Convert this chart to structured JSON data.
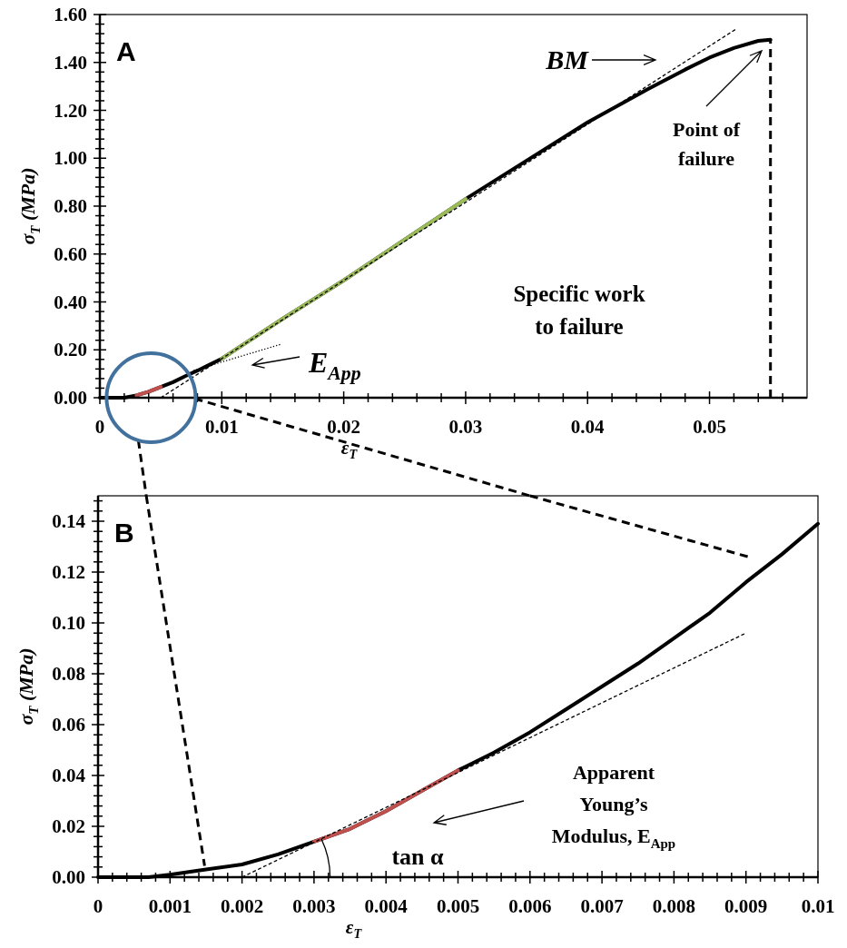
{
  "chart_data": [
    {
      "type": "line",
      "title": "A",
      "xlabel": "ε$_{T}$",
      "ylabel": "σ$_{T}$ (MPa)",
      "xlim": [
        0,
        0.058
      ],
      "ylim": [
        0,
        1.6
      ],
      "xticks": [
        0,
        {
          "value": 0.002,
          "label": null
        },
        {
          "value": 0.004,
          "label": null
        },
        {
          "value": 0.006,
          "label": null
        },
        {
          "value": 0.008,
          "label": null
        },
        0.01,
        {
          "value": 0.012,
          "label": null
        },
        {
          "value": 0.014,
          "label": null
        },
        {
          "value": 0.016,
          "label": null
        },
        {
          "value": 0.018,
          "label": null
        },
        0.02,
        {
          "value": 0.022,
          "label": null
        },
        {
          "value": 0.024,
          "label": null
        },
        {
          "value": 0.026,
          "label": null
        },
        {
          "value": 0.028,
          "label": null
        },
        0.03,
        {
          "value": 0.032,
          "label": null
        },
        {
          "value": 0.034,
          "label": null
        },
        {
          "value": 0.036,
          "label": null
        },
        {
          "value": 0.038,
          "label": null
        },
        0.04,
        {
          "value": 0.042,
          "label": null
        },
        {
          "value": 0.044,
          "label": null
        },
        {
          "value": 0.046,
          "label": null
        },
        {
          "value": 0.048,
          "label": null
        },
        0.05,
        {
          "value": 0.052,
          "label": null
        },
        {
          "value": 0.054,
          "label": null
        },
        {
          "value": 0.056,
          "label": null
        }
      ],
      "yticks": [
        {
          "value": 0,
          "label": "0.00"
        },
        {
          "value": 0.04,
          "label": null
        },
        {
          "value": 0.08,
          "label": null
        },
        {
          "value": 0.12,
          "label": null
        },
        {
          "value": 0.16,
          "label": null
        },
        {
          "value": 0.2,
          "label": "0.20"
        },
        {
          "value": 0.24,
          "label": null
        },
        {
          "value": 0.28,
          "label": null
        },
        {
          "value": 0.32,
          "label": null
        },
        {
          "value": 0.36,
          "label": null
        },
        {
          "value": 0.4,
          "label": "0.40"
        },
        {
          "value": 0.44,
          "label": null
        },
        {
          "value": 0.48,
          "label": null
        },
        {
          "value": 0.52,
          "label": null
        },
        {
          "value": 0.56,
          "label": null
        },
        {
          "value": 0.6,
          "label": "0.60"
        },
        {
          "value": 0.64,
          "label": null
        },
        {
          "value": 0.68,
          "label": null
        },
        {
          "value": 0.72,
          "label": null
        },
        {
          "value": 0.76,
          "label": null
        },
        {
          "value": 0.8,
          "label": "0.80"
        },
        {
          "value": 0.84,
          "label": null
        },
        {
          "value": 0.88,
          "label": null
        },
        {
          "value": 0.92,
          "label": null
        },
        {
          "value": 0.96,
          "label": null
        },
        {
          "value": 1,
          "label": "1.00"
        },
        {
          "value": 1.04,
          "label": null
        },
        {
          "value": 1.08,
          "label": null
        },
        {
          "value": 1.12,
          "label": null
        },
        {
          "value": 1.16,
          "label": null
        },
        {
          "value": 1.2,
          "label": "1.20"
        },
        {
          "value": 1.24,
          "label": null
        },
        {
          "value": 1.28,
          "label": null
        },
        {
          "value": 1.32,
          "label": null
        },
        {
          "value": 1.36,
          "label": null
        },
        {
          "value": 1.4,
          "label": "1.40"
        },
        {
          "value": 1.44,
          "label": null
        },
        {
          "value": 1.48,
          "label": null
        },
        {
          "value": 1.52,
          "label": null
        },
        {
          "value": 1.56,
          "label": null
        },
        {
          "value": 1.6,
          "label": "1.60"
        }
      ],
      "series": [
        {
          "color": "#000000",
          "line_style": "solid",
          "x": [
            0,
            0.002,
            0.003,
            0.004,
            0.005,
            0.006,
            0.007,
            0.008,
            0.009,
            0.01,
            0.015,
            0.02,
            0.025,
            0.03,
            0.035,
            0.04,
            0.045,
            0.048,
            0.05,
            0.052,
            0.054,
            0.055
          ],
          "values": [
            0,
            0,
            0.01,
            0.025,
            0.045,
            0.065,
            0.09,
            0.113,
            0.138,
            0.163,
            0.33,
            0.49,
            0.66,
            0.83,
            0.99,
            1.15,
            1.29,
            1.37,
            1.42,
            1.46,
            1.49,
            1.495
          ]
        },
        {
          "color": "#9bbb59",
          "line_style": "solid",
          "x": [
            0.01,
            0.015,
            0.02,
            0.025,
            0.03
          ],
          "values": [
            0.163,
            0.33,
            0.49,
            0.66,
            0.83
          ]
        },
        {
          "color": "#c0504d",
          "line_style": "solid",
          "x": [
            0.003,
            0.004,
            0.005
          ],
          "values": [
            0.01,
            0.025,
            0.045
          ]
        },
        {
          "color": "#000000",
          "line_style": "dashed",
          "x": [
            0.005,
            0.0522
          ],
          "values": [
            0,
            1.54
          ]
        },
        {
          "color": "#000000",
          "line_style": "dotted",
          "x": [
            0.0077,
            0.0149
          ],
          "values": [
            0.114,
            0.224
          ]
        },
        {
          "color": "#000000",
          "line_style": "dashed",
          "x": [
            0.055,
            0.055
          ],
          "values": [
            0,
            1.495
          ]
        }
      ],
      "annotations": [
        "BM",
        "Point of\nfailure",
        "Specific work\nto failure",
        "E$_{App}$"
      ]
    },
    {
      "type": "line",
      "title": "B",
      "xlabel": "ε$_{T}$",
      "ylabel": "σ$_{T}$ (MPa)",
      "xlim": [
        0,
        0.01
      ],
      "ylim": [
        0,
        0.15
      ],
      "xticks": [
        0,
        {
          "value": 0.0002,
          "label": null
        },
        {
          "value": 0.0004,
          "label": null
        },
        {
          "value": 0.0006,
          "label": null
        },
        {
          "value": 0.0008,
          "label": null
        },
        0.001,
        {
          "value": 0.0012,
          "label": null
        },
        {
          "value": 0.0014,
          "label": null
        },
        {
          "value": 0.0016,
          "label": null
        },
        {
          "value": 0.0018,
          "label": null
        },
        0.002,
        {
          "value": 0.0022,
          "label": null
        },
        {
          "value": 0.0024,
          "label": null
        },
        {
          "value": 0.0026,
          "label": null
        },
        {
          "value": 0.0028,
          "label": null
        },
        0.003,
        {
          "value": 0.0032,
          "label": null
        },
        {
          "value": 0.0034,
          "label": null
        },
        {
          "value": 0.0036,
          "label": null
        },
        {
          "value": 0.0038,
          "label": null
        },
        0.004,
        {
          "value": 0.0042,
          "label": null
        },
        {
          "value": 0.0044,
          "label": null
        },
        {
          "value": 0.0046,
          "label": null
        },
        {
          "value": 0.0048,
          "label": null
        },
        0.005,
        {
          "value": 0.0052,
          "label": null
        },
        {
          "value": 0.0054,
          "label": null
        },
        {
          "value": 0.0056,
          "label": null
        },
        {
          "value": 0.0058,
          "label": null
        },
        0.006,
        {
          "value": 0.0062,
          "label": null
        },
        {
          "value": 0.0064,
          "label": null
        },
        {
          "value": 0.0066,
          "label": null
        },
        {
          "value": 0.0068,
          "label": null
        },
        0.007,
        {
          "value": 0.0072,
          "label": null
        },
        {
          "value": 0.0074,
          "label": null
        },
        {
          "value": 0.0076,
          "label": null
        },
        {
          "value": 0.0078,
          "label": null
        },
        0.008,
        {
          "value": 0.0082,
          "label": null
        },
        {
          "value": 0.0084,
          "label": null
        },
        {
          "value": 0.0086,
          "label": null
        },
        {
          "value": 0.0088,
          "label": null
        },
        0.009,
        {
          "value": 0.0092,
          "label": null
        },
        {
          "value": 0.0094,
          "label": null
        },
        {
          "value": 0.0096,
          "label": null
        },
        {
          "value": 0.0098,
          "label": null
        },
        0.01
      ],
      "yticks": [
        {
          "value": 0,
          "label": "0.00"
        },
        {
          "value": 0.004,
          "label": null
        },
        {
          "value": 0.008,
          "label": null
        },
        {
          "value": 0.012,
          "label": null
        },
        {
          "value": 0.016,
          "label": null
        },
        0.02,
        {
          "value": 0.024,
          "label": null
        },
        {
          "value": 0.028,
          "label": null
        },
        {
          "value": 0.032,
          "label": null
        },
        {
          "value": 0.036,
          "label": null
        },
        0.04,
        {
          "value": 0.044,
          "label": null
        },
        {
          "value": 0.048,
          "label": null
        },
        {
          "value": 0.052,
          "label": null
        },
        {
          "value": 0.056,
          "label": null
        },
        0.06,
        {
          "value": 0.064,
          "label": null
        },
        {
          "value": 0.068,
          "label": null
        },
        {
          "value": 0.072,
          "label": null
        },
        {
          "value": 0.076,
          "label": null
        },
        0.08,
        {
          "value": 0.084,
          "label": null
        },
        {
          "value": 0.088,
          "label": null
        },
        {
          "value": 0.092,
          "label": null
        },
        {
          "value": 0.096,
          "label": null
        },
        {
          "value": 0.1,
          "label": "0.10"
        },
        {
          "value": 0.104,
          "label": null
        },
        {
          "value": 0.108,
          "label": null
        },
        {
          "value": 0.112,
          "label": null
        },
        {
          "value": 0.116,
          "label": null
        },
        0.12,
        {
          "value": 0.124,
          "label": null
        },
        {
          "value": 0.128,
          "label": null
        },
        {
          "value": 0.132,
          "label": null
        },
        {
          "value": 0.136,
          "label": null
        },
        0.14,
        {
          "value": 0.144,
          "label": null
        },
        {
          "value": 0.148,
          "label": null
        }
      ],
      "series": [
        {
          "color": "#000000",
          "line_style": "solid",
          "x": [
            0,
            0.0007,
            0.001,
            0.0015,
            0.002,
            0.0025,
            0.003,
            0.0035,
            0.004,
            0.0045,
            0.005,
            0.0055,
            0.006,
            0.0065,
            0.007,
            0.0075,
            0.008,
            0.0085,
            0.009,
            0.0095,
            0.01
          ],
          "values": [
            0,
            0,
            0.001,
            0.003,
            0.005,
            0.009,
            0.014,
            0.019,
            0.026,
            0.034,
            0.042,
            0.049,
            0.057,
            0.066,
            0.075,
            0.084,
            0.094,
            0.104,
            0.116,
            0.127,
            0.139
          ]
        },
        {
          "color": "#c0504d",
          "line_style": "solid",
          "x": [
            0.003,
            0.0035,
            0.004,
            0.0045,
            0.005
          ],
          "values": [
            0.014,
            0.019,
            0.026,
            0.034,
            0.042
          ]
        },
        {
          "color": "#000000",
          "line_style": "dashed",
          "x": [
            0.002,
            0.009
          ],
          "values": [
            0,
            0.096
          ]
        },
        {
          "color": "#000000",
          "line_style": "dashed",
          "x": [
            0.00067,
            0.00148
          ],
          "values": [
            0.15,
            0.0045
          ]
        },
        {
          "color": "#000000",
          "line_style": "dashed",
          "x": [
            0.006,
            0.00907
          ],
          "values": [
            0.15,
            0.1257
          ]
        }
      ],
      "annotations": [
        "tan α",
        "Apparent\nYoung’s\nModulus, E$_{App}$"
      ]
    }
  ]
}
